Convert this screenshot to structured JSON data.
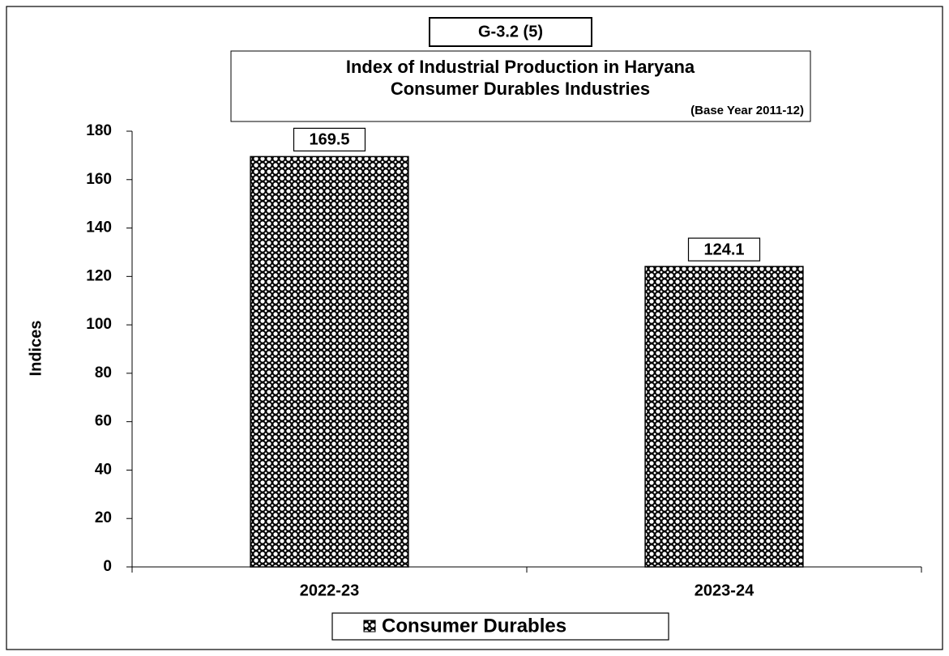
{
  "chart_data": {
    "type": "bar",
    "figure_label": "G-3.2 (5)",
    "title": [
      "Index of Industrial Production in Haryana",
      "Consumer  Durables Industries"
    ],
    "subtitle": "(Base Year 2011-12)",
    "y_label": "Indices",
    "categories": [
      "2022-23",
      "2023-24"
    ],
    "series": [
      {
        "name": "Consumer Durables",
        "color": "#000000",
        "values": [
          169.5,
          124.1
        ]
      }
    ],
    "ylim": [
      0,
      180
    ],
    "yticks": [
      0,
      20,
      40,
      60,
      80,
      100,
      120,
      140,
      160,
      180
    ],
    "grid": false,
    "legend": "bottom"
  }
}
